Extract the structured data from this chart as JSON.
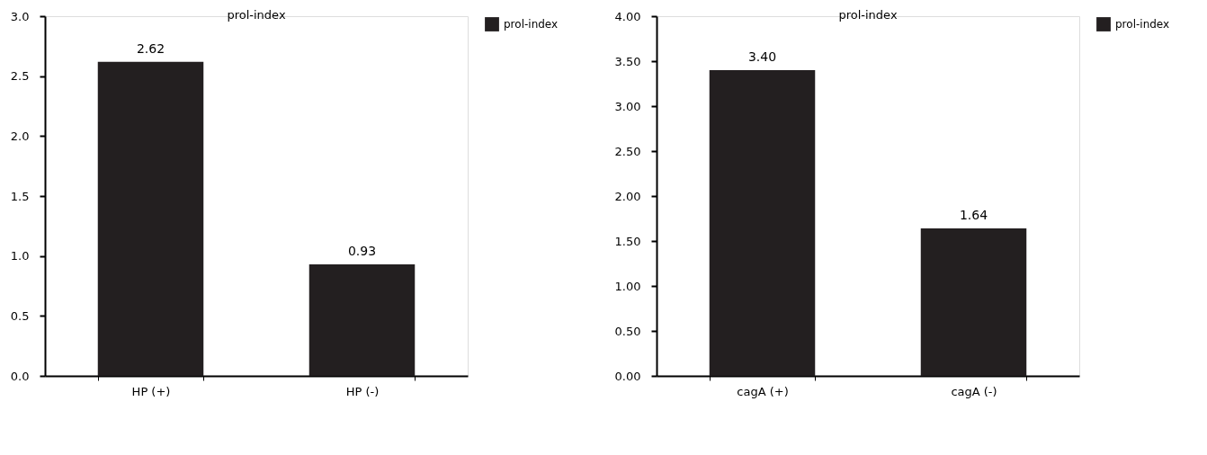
{
  "chart_data": [
    {
      "type": "bar",
      "title": "prol-index",
      "categories": [
        "HP (+)",
        "HP (-)"
      ],
      "series": [
        {
          "name": "prol-index",
          "color": "#231f20",
          "values": [
            2.62,
            0.93
          ],
          "value_labels": [
            "2.62",
            "0.93"
          ]
        }
      ],
      "ylim": [
        0,
        3
      ],
      "yticks": [
        {
          "value": 0,
          "label": "0.0"
        },
        {
          "value": 0.5,
          "label": "0.5"
        },
        {
          "value": 1,
          "label": "1.0"
        },
        {
          "value": 1.5,
          "label": "1.5"
        },
        {
          "value": 2,
          "label": "2.0"
        },
        {
          "value": 2.5,
          "label": "2.5"
        },
        {
          "value": 3,
          "label": "3.0"
        }
      ],
      "grid": false,
      "legend": "right"
    },
    {
      "type": "bar",
      "title": "prol-index",
      "categories": [
        "cagA (+)",
        "cagA (-)"
      ],
      "series": [
        {
          "name": "prol-index",
          "color": "#231f20",
          "values": [
            3.4,
            1.64
          ],
          "value_labels": [
            "3.40",
            "1.64"
          ]
        }
      ],
      "ylim": [
        0,
        4
      ],
      "yticks": [
        {
          "value": 0,
          "label": "0.00"
        },
        {
          "value": 0.5,
          "label": "0.50"
        },
        {
          "value": 1,
          "label": "1.00"
        },
        {
          "value": 1.5,
          "label": "1.50"
        },
        {
          "value": 2,
          "label": "2.00"
        },
        {
          "value": 2.5,
          "label": "2.50"
        },
        {
          "value": 3,
          "label": "3.00"
        },
        {
          "value": 3.5,
          "label": "3.50"
        },
        {
          "value": 4,
          "label": "4.00"
        }
      ],
      "grid": false,
      "legend": "right"
    }
  ]
}
